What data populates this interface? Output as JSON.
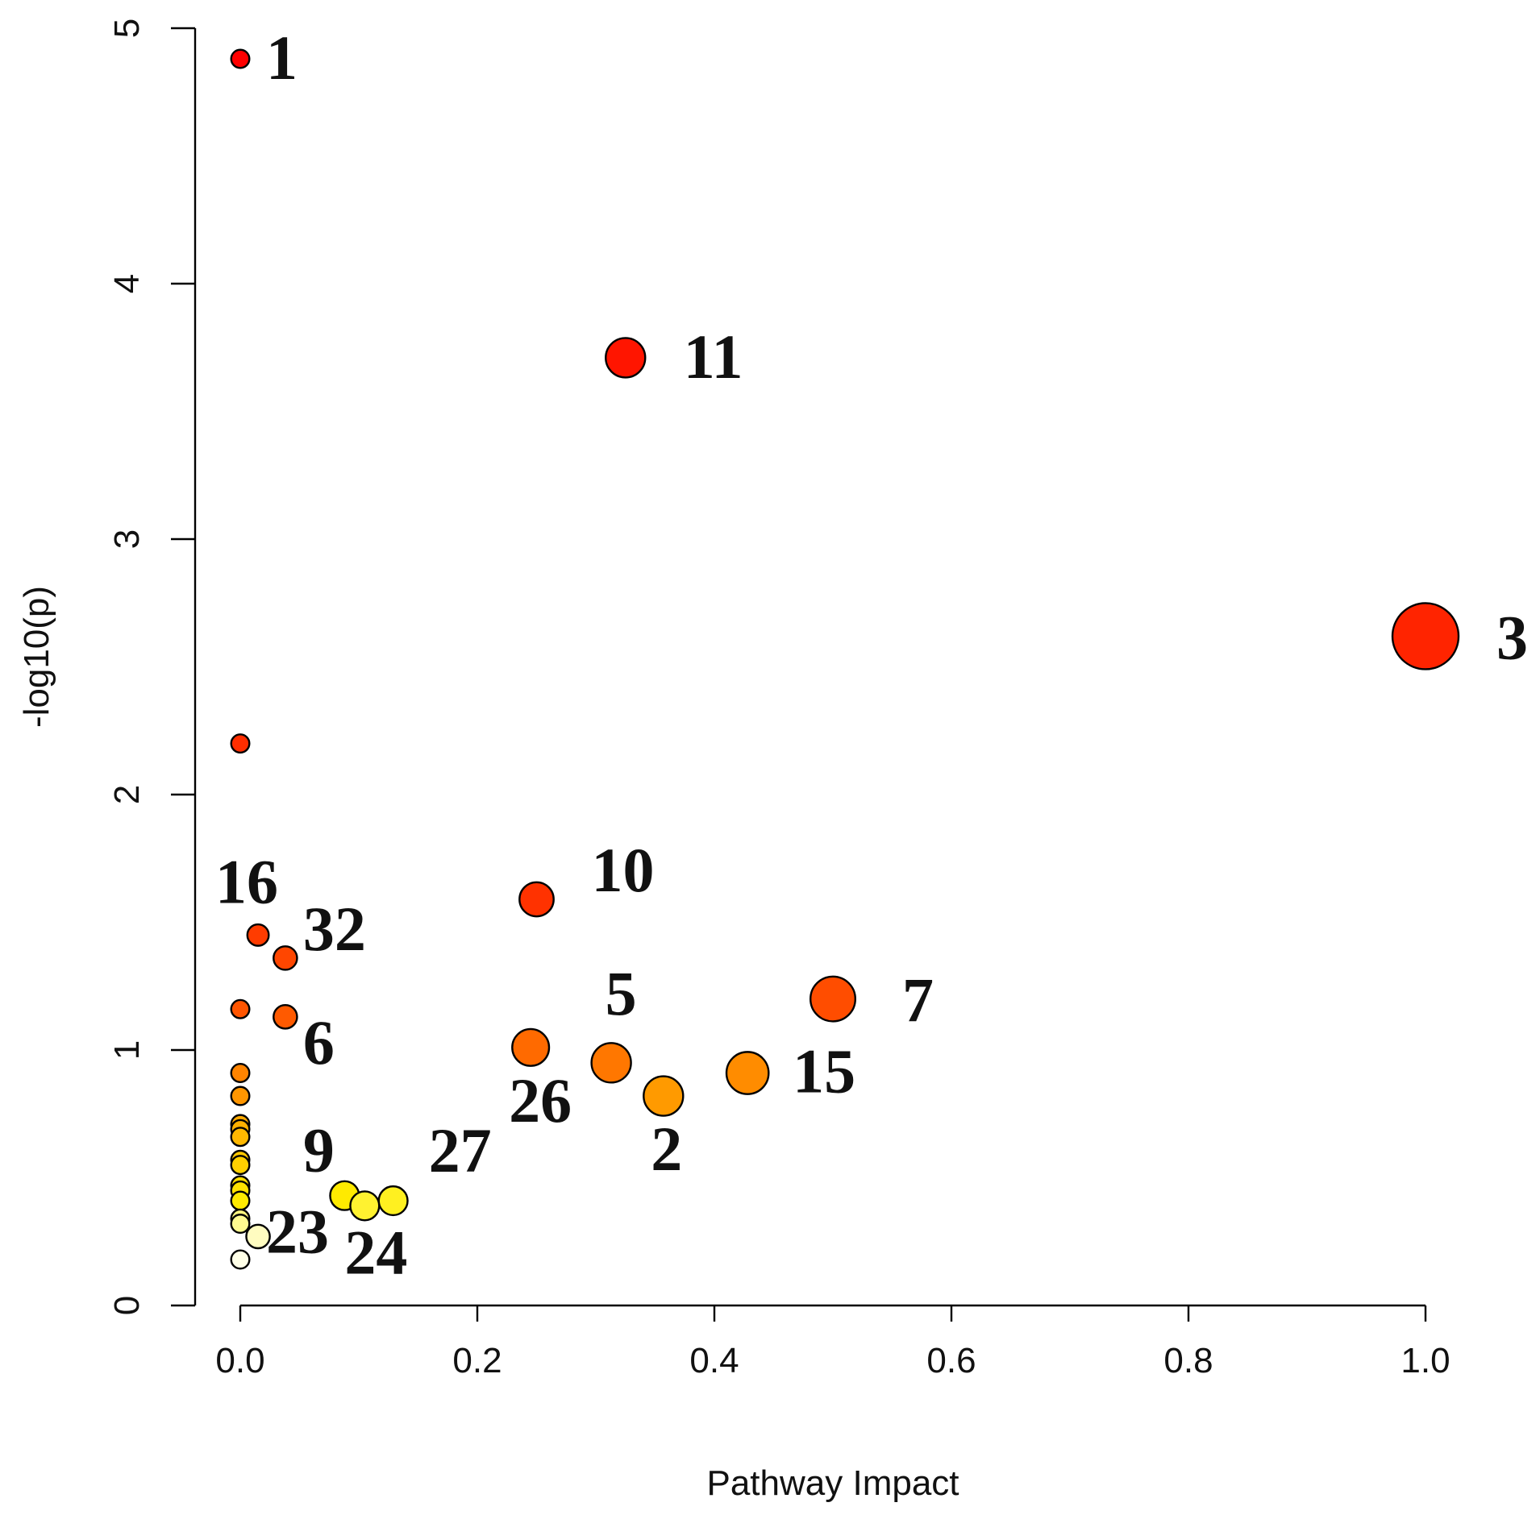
{
  "chart_data": {
    "type": "scatter",
    "title": "",
    "xlabel": "Pathway Impact",
    "ylabel": "-log10(p)",
    "xlim": [
      0.0,
      1.0
    ],
    "ylim": [
      0,
      5
    ],
    "xticks": [
      "0.0",
      "0.2",
      "0.4",
      "0.6",
      "0.8",
      "1.0"
    ],
    "yticks": [
      "0",
      "1",
      "2",
      "3",
      "4",
      "5"
    ],
    "grid": false,
    "points": [
      {
        "label": "1",
        "x": 0.0,
        "y": 4.88,
        "size": 1,
        "color": "#ff0000"
      },
      {
        "label": "11",
        "x": 0.325,
        "y": 3.71,
        "size": 5,
        "color": "#ff1500"
      },
      {
        "label": "3",
        "x": 1.0,
        "y": 2.62,
        "size": 10,
        "color": "#ff2400"
      },
      {
        "label": "",
        "x": 0.0,
        "y": 2.2,
        "size": 1,
        "color": "#ff2e00"
      },
      {
        "label": "10",
        "x": 0.25,
        "y": 1.59,
        "size": 4,
        "color": "#ff3200"
      },
      {
        "label": "16",
        "x": 0.015,
        "y": 1.45,
        "size": 1.6,
        "color": "#ff3c00"
      },
      {
        "label": "32",
        "x": 0.038,
        "y": 1.36,
        "size": 2,
        "color": "#ff4600"
      },
      {
        "label": "7",
        "x": 0.5,
        "y": 1.2,
        "size": 6,
        "color": "#ff4d00"
      },
      {
        "label": "",
        "x": 0.0,
        "y": 1.16,
        "size": 1,
        "color": "#ff5500"
      },
      {
        "label": "6",
        "x": 0.038,
        "y": 1.13,
        "size": 2,
        "color": "#ff5a00"
      },
      {
        "label": "26",
        "x": 0.245,
        "y": 1.01,
        "size": 4.5,
        "color": "#ff6a00"
      },
      {
        "label": "5",
        "x": 0.313,
        "y": 0.95,
        "size": 5,
        "color": "#ff7700"
      },
      {
        "label": "15",
        "x": 0.428,
        "y": 0.91,
        "size": 5.5,
        "color": "#ff8c00"
      },
      {
        "label": "",
        "x": 0.0,
        "y": 0.91,
        "size": 1,
        "color": "#ff8400"
      },
      {
        "label": "2",
        "x": 0.357,
        "y": 0.82,
        "size": 5,
        "color": "#ff9a00"
      },
      {
        "label": "",
        "x": 0.0,
        "y": 0.82,
        "size": 1,
        "color": "#ff9600"
      },
      {
        "label": "",
        "x": 0.0,
        "y": 0.71,
        "size": 1,
        "color": "#ffaa00"
      },
      {
        "label": "",
        "x": 0.0,
        "y": 0.69,
        "size": 1,
        "color": "#ffb000"
      },
      {
        "label": "",
        "x": 0.0,
        "y": 0.66,
        "size": 1,
        "color": "#ffb800"
      },
      {
        "label": "",
        "x": 0.0,
        "y": 0.57,
        "size": 1,
        "color": "#ffc800"
      },
      {
        "label": "",
        "x": 0.0,
        "y": 0.55,
        "size": 1,
        "color": "#ffd000"
      },
      {
        "label": "",
        "x": 0.0,
        "y": 0.47,
        "size": 1,
        "color": "#ffdd00"
      },
      {
        "label": "",
        "x": 0.0,
        "y": 0.45,
        "size": 1,
        "color": "#ffe200"
      },
      {
        "label": "9",
        "x": 0.088,
        "y": 0.43,
        "size": 3,
        "color": "#ffea00"
      },
      {
        "label": "27",
        "x": 0.129,
        "y": 0.41,
        "size": 3,
        "color": "#fff020"
      },
      {
        "label": "",
        "x": 0.0,
        "y": 0.41,
        "size": 1,
        "color": "#ffea00"
      },
      {
        "label": "24",
        "x": 0.105,
        "y": 0.39,
        "size": 3,
        "color": "#fff230"
      },
      {
        "label": "",
        "x": 0.0,
        "y": 0.34,
        "size": 1,
        "color": "#fff680"
      },
      {
        "label": "",
        "x": 0.0,
        "y": 0.32,
        "size": 1,
        "color": "#fffa90"
      },
      {
        "label": "23",
        "x": 0.015,
        "y": 0.27,
        "size": 2,
        "color": "#fffcc0"
      },
      {
        "label": "",
        "x": 0.0,
        "y": 0.18,
        "size": 1,
        "color": "#ffffe8"
      }
    ]
  }
}
